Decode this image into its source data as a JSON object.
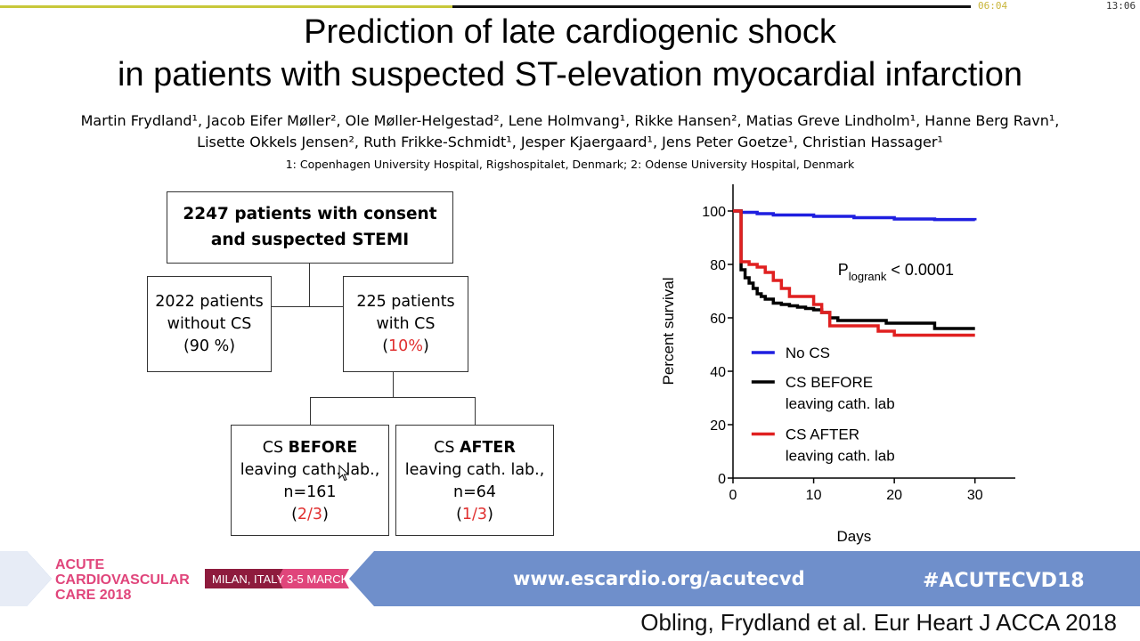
{
  "player": {
    "current_time": "06:04",
    "total_time": "13:06",
    "progress": 0.466
  },
  "slide": {
    "title_line1": "Prediction of late cardiogenic shock",
    "title_line2": "in patients with suspected ST-elevation myocardial infarction",
    "authors_line1": "Martin Frydland¹, Jacob Eifer Møller², Ole Møller-Helgestad², Lene Holmvang¹, Rikke Hansen², Matias Greve Lindholm¹, Hanne Berg Ravn¹,",
    "authors_line2": "Lisette Okkels Jensen², Ruth Frikke-Schmidt¹, Jesper Kjaergaard¹, Jens Peter Goetze¹, Christian Hassager¹",
    "affiliations": "1: Copenhagen University Hospital, Rigshospitalet, Denmark; 2: Odense University Hospital, Denmark"
  },
  "flow": {
    "top": {
      "line1": "2247 patients with consent",
      "line2": "and suspected STEMI"
    },
    "no_cs": {
      "line1": "2022 patients",
      "line2": "without CS",
      "line3": "(90 %)"
    },
    "cs": {
      "line1": "225 patients",
      "line2": "with CS",
      "pct": "10%"
    },
    "before": {
      "prefix": "CS ",
      "strong": "BEFORE",
      "line2": "leaving cath. lab.,",
      "line3": "n=161",
      "frac": "2/3"
    },
    "after": {
      "prefix": "CS ",
      "strong": "AFTER",
      "line2": "leaving cath. lab.,",
      "line3": "n=64",
      "frac": "1/3"
    }
  },
  "banner": {
    "event_line1": "ACUTE",
    "event_line2": "CARDIOVASCULAR",
    "event_line3": "CARE 2018",
    "location": "MILAN, ITALY",
    "dates": "3-5 MARCH",
    "url": "www.escardio.org/acutecvd",
    "hashtag": "#ACUTECVD18"
  },
  "citation": "Obling, Frydland et al. Eur Heart J ACCA 2018",
  "chart_data": {
    "type": "line",
    "xlabel": "Days",
    "ylabel": "Percent survival",
    "xlim": [
      0,
      35
    ],
    "ylim": [
      0,
      110
    ],
    "xticks": [
      0,
      10,
      20,
      30
    ],
    "yticks": [
      0,
      20,
      40,
      60,
      80,
      100
    ],
    "annotation": {
      "p": "P",
      "sub": "logrank",
      "rest": " < 0.0001"
    },
    "series": [
      {
        "name": "No CS",
        "color": "#1f1fe0",
        "x": [
          0,
          1,
          3,
          5,
          10,
          15,
          20,
          25,
          30
        ],
        "y": [
          100,
          99.5,
          99,
          98.5,
          98,
          97.5,
          97,
          96.8,
          96.5
        ]
      },
      {
        "name": "CS BEFORE leaving cath. lab",
        "color": "#000000",
        "x": [
          0,
          1,
          1,
          1.5,
          2,
          2.5,
          3,
          3.5,
          4,
          5,
          6,
          7,
          8,
          9,
          10,
          11,
          12,
          13,
          15,
          17,
          19,
          25,
          30
        ],
        "y": [
          100,
          100,
          78,
          75,
          73,
          71,
          69,
          68,
          67,
          65.5,
          65,
          64.5,
          64,
          63.5,
          63,
          62,
          60,
          59,
          59,
          59,
          58,
          56,
          56
        ]
      },
      {
        "name": "CS AFTER leaving cath. lab",
        "color": "#e02020",
        "x": [
          0,
          1,
          1,
          2,
          3,
          4,
          5,
          6,
          7,
          9,
          10,
          11,
          12,
          15,
          18,
          20,
          30
        ],
        "y": [
          100,
          100,
          81,
          80,
          79,
          77,
          74,
          71,
          68,
          68,
          65,
          62,
          57,
          57,
          55,
          53.5,
          53.5
        ]
      }
    ],
    "legend": [
      {
        "line1": "No CS",
        "line2": ""
      },
      {
        "line1": "CS BEFORE",
        "line2": "leaving cath. lab"
      },
      {
        "line1": "CS AFTER",
        "line2": "leaving cath. lab"
      }
    ]
  }
}
